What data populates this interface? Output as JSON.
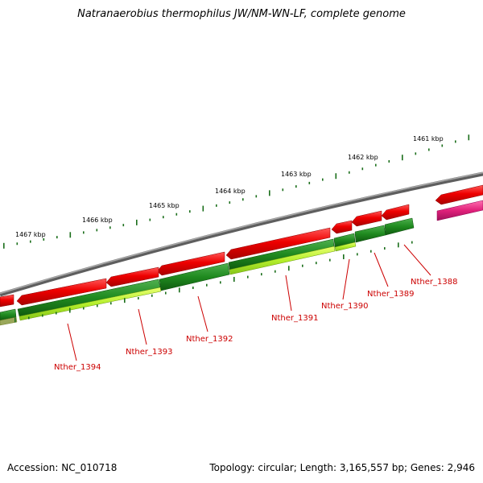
{
  "title": "Natranaerobius thermophilus JW/NM-WN-LF, complete genome",
  "footer": {
    "accession": "Accession: NC_010718",
    "summary": "Topology: circular; Length: 3,165,557 bp; Genes: 2,946"
  },
  "ticks": [
    {
      "label": "1461 kbp",
      "kbp": 1461
    },
    {
      "label": "1462 kbp",
      "kbp": 1462
    },
    {
      "label": "1463 kbp",
      "kbp": 1463
    },
    {
      "label": "1464 kbp",
      "kbp": 1464
    },
    {
      "label": "1465 kbp",
      "kbp": 1465
    },
    {
      "label": "1466 kbp",
      "kbp": 1466
    },
    {
      "label": "1467 kbp",
      "kbp": 1467
    }
  ],
  "genes": [
    {
      "label": "Nther_1388"
    },
    {
      "label": "Nther_1389"
    },
    {
      "label": "Nther_1390"
    },
    {
      "label": "Nther_1391"
    },
    {
      "label": "Nther_1392"
    },
    {
      "label": "Nther_1393"
    },
    {
      "label": "Nther_1394"
    }
  ],
  "colors": {
    "backbone": "#7f7f7f",
    "cds_forward": "#e00000",
    "gene_dark_green": "#1f8a1f",
    "gene_light_green": "#a8e830",
    "pink_feature": "#e0207a",
    "tick_green": "#1a6e1a",
    "label_red": "#cc0000"
  }
}
